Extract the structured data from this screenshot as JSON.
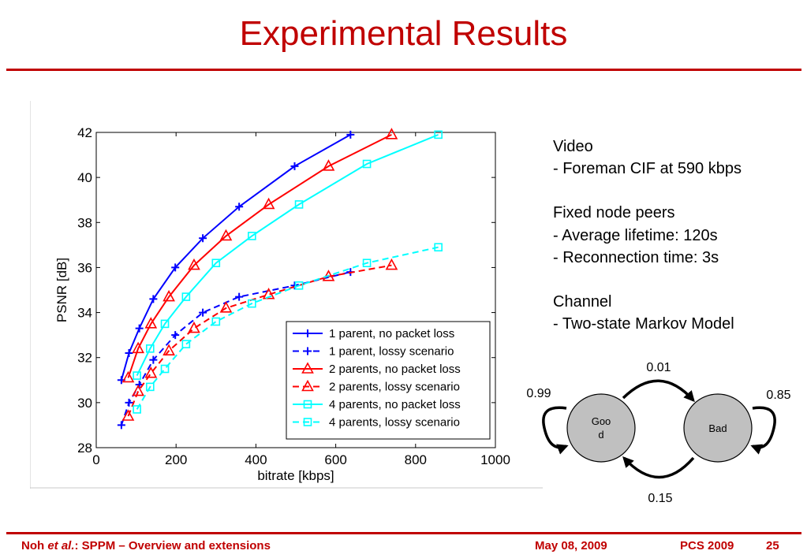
{
  "slide": {
    "title": "Experimental Results"
  },
  "notes": {
    "video_heading": "Video",
    "video_line": "- Foreman CIF at 590 kbps",
    "peers_heading": "Fixed node peers",
    "peers_line1": "- Average lifetime: 120s",
    "peers_line2": "- Reconnection time: 3s",
    "channel_heading": "Channel",
    "channel_line": "- Two-state Markov Model"
  },
  "markov": {
    "good_label_line1": "Goo",
    "good_label_line2": "d",
    "bad_label": "Bad",
    "p_good_to_bad": "0.01",
    "p_bad_to_good": "0.15",
    "p_good_self": "0.99",
    "p_bad_self": "0.85"
  },
  "footer": {
    "author": "Noh ",
    "etal": "et al.",
    "topic": ": SPPM – Overview and extensions",
    "date": "May 08, 2009",
    "conference": "PCS 2009",
    "page": "25"
  },
  "colors": {
    "accent": "#c00000",
    "blue": "#0000ff",
    "red": "#ff0000",
    "cyan": "#00ffff",
    "state_fill": "#c0c0c0"
  },
  "chart_data": {
    "type": "line",
    "xlabel": "bitrate [kbps]",
    "ylabel": "PSNR [dB]",
    "xlim": [
      0,
      1000
    ],
    "ylim": [
      28,
      42
    ],
    "xticks": [
      "0",
      "200",
      "400",
      "600",
      "800",
      "1000"
    ],
    "yticks": [
      "28",
      "30",
      "32",
      "34",
      "36",
      "38",
      "40",
      "42"
    ],
    "grid": false,
    "legend_position": "bottom-right",
    "series": [
      {
        "name": "1 parent, no packet loss",
        "color": "#0000ff",
        "dash": "solid",
        "marker": "plus",
        "x": [
          63,
          82,
          108,
          143,
          198,
          267,
          358,
          497,
          637
        ],
        "y": [
          31.0,
          32.2,
          33.3,
          34.6,
          36.0,
          37.3,
          38.7,
          40.5,
          41.9
        ]
      },
      {
        "name": "1 parent, lossy scenario",
        "color": "#0000ff",
        "dash": "dashed",
        "marker": "plus",
        "x": [
          63,
          82,
          108,
          143,
          198,
          267,
          358,
          497,
          637
        ],
        "y": [
          29.0,
          30.0,
          30.8,
          31.9,
          33.0,
          34.0,
          34.7,
          35.2,
          35.8
        ]
      },
      {
        "name": "2 parents, no packet loss",
        "color": "#ff0000",
        "dash": "solid",
        "marker": "triangle",
        "x": [
          80,
          105,
          137,
          182,
          245,
          325,
          432,
          582,
          740
        ],
        "y": [
          31.1,
          32.4,
          33.5,
          34.7,
          36.1,
          37.4,
          38.8,
          40.5,
          41.9
        ]
      },
      {
        "name": "2 parents, lossy scenario",
        "color": "#ff0000",
        "dash": "dashed",
        "marker": "triangle",
        "x": [
          80,
          105,
          137,
          182,
          245,
          325,
          432,
          582,
          740
        ],
        "y": [
          29.4,
          30.5,
          31.3,
          32.3,
          33.3,
          34.2,
          34.8,
          35.6,
          36.1
        ]
      },
      {
        "name": "4 parents, no packet loss",
        "color": "#00ffff",
        "dash": "solid",
        "marker": "square",
        "x": [
          102,
          135,
          172,
          225,
          300,
          390,
          508,
          678,
          857
        ],
        "y": [
          31.2,
          32.4,
          33.5,
          34.7,
          36.2,
          37.4,
          38.8,
          40.6,
          41.9
        ]
      },
      {
        "name": "4 parents, lossy scenario",
        "color": "#00ffff",
        "dash": "dashed",
        "marker": "square",
        "x": [
          102,
          135,
          172,
          225,
          300,
          390,
          508,
          678,
          857
        ],
        "y": [
          29.7,
          30.7,
          31.5,
          32.6,
          33.6,
          34.4,
          35.2,
          36.2,
          36.9
        ]
      }
    ]
  }
}
